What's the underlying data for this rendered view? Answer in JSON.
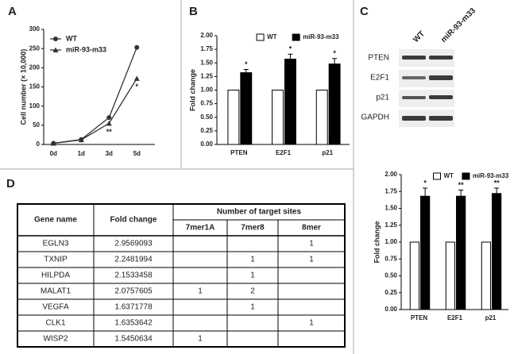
{
  "panels": {
    "a": "A",
    "b": "B",
    "c": "C",
    "d": "D"
  },
  "chart_data": [
    {
      "type": "line",
      "ylabel": "Cell number (× 10,000)",
      "categories": [
        "0d",
        "1d",
        "3d",
        "5d"
      ],
      "ylim": [
        0,
        300
      ],
      "yticks": [
        0,
        50,
        100,
        150,
        200,
        250,
        300
      ],
      "series": [
        {
          "name": "WT",
          "color": "#333333",
          "marker": "circle",
          "values": [
            3,
            13,
            70,
            253
          ]
        },
        {
          "name": "miR-93-m33",
          "color": "#333333",
          "marker": "triangle",
          "values": [
            3,
            12,
            55,
            172
          ],
          "annotations": [
            null,
            null,
            "**",
            "*"
          ]
        }
      ]
    },
    {
      "type": "bar",
      "ylabel": "Fold change",
      "categories": [
        "PTEN",
        "E2F1",
        "p21"
      ],
      "ylim": [
        0,
        2
      ],
      "yticks": [
        {
          "value": 0,
          "label": "0.00"
        },
        {
          "value": 0.25,
          "label": "0.25"
        },
        {
          "value": 0.5,
          "label": "0.50"
        },
        {
          "value": 0.75,
          "label": "0.75"
        },
        {
          "value": 1,
          "label": "1.00"
        },
        {
          "value": 1.25,
          "label": "1.25"
        },
        {
          "value": 1.5,
          "label": "1.50"
        },
        {
          "value": 1.75,
          "label": "1.75"
        },
        {
          "value": 2,
          "label": "2.00"
        }
      ],
      "series": [
        {
          "name": "WT",
          "color": "#ffffff",
          "values": [
            1,
            1,
            1
          ]
        },
        {
          "name": "miR-93-m33",
          "color": "#000000",
          "values": [
            1.32,
            1.57,
            1.48
          ],
          "errors": [
            0.06,
            0.09,
            0.1
          ],
          "annotations": [
            "*",
            "*",
            "*"
          ]
        }
      ]
    },
    {
      "type": "bar",
      "ylabel": "Fold change",
      "categories": [
        "PTEN",
        "E2F1",
        "p21"
      ],
      "ylim": [
        0,
        2
      ],
      "yticks": [
        {
          "value": 0,
          "label": "0.00"
        },
        {
          "value": 0.25,
          "label": "0.25"
        },
        {
          "value": 0.5,
          "label": "0.50"
        },
        {
          "value": 0.75,
          "label": "0.75"
        },
        {
          "value": 1,
          "label": "1.00"
        },
        {
          "value": 1.25,
          "label": "1.25"
        },
        {
          "value": 1.5,
          "label": "1.50"
        },
        {
          "value": 1.75,
          "label": "1.75"
        },
        {
          "value": 2,
          "label": "2.00"
        }
      ],
      "series": [
        {
          "name": "WT",
          "color": "#ffffff",
          "values": [
            1,
            1,
            1
          ]
        },
        {
          "name": "miR-93-m33",
          "color": "#000000",
          "values": [
            1.68,
            1.68,
            1.72
          ],
          "errors": [
            0.12,
            0.09,
            0.08
          ],
          "annotations": [
            "*",
            "**",
            "**"
          ]
        }
      ]
    }
  ],
  "western_blot": {
    "columns": [
      "WT",
      "miR-93-m33"
    ],
    "rows": [
      "PTEN",
      "E2F1",
      "p21",
      "GAPDH"
    ]
  },
  "table": {
    "header": [
      "Gene name",
      "Fold change",
      "Number of  target sites"
    ],
    "subheader": [
      "7mer1A",
      "7mer8",
      "8mer"
    ],
    "rows": [
      [
        "EGLN3",
        2.9569093,
        null,
        null,
        1
      ],
      [
        "TXNIP",
        2.2481994,
        null,
        1,
        1
      ],
      [
        "HILPDA",
        2.1533458,
        null,
        1,
        null
      ],
      [
        "MALAT1",
        2.0757605,
        1,
        2,
        null
      ],
      [
        "VEGFA",
        1.6371778,
        null,
        1,
        null
      ],
      [
        "CLK1",
        1.6353642,
        null,
        null,
        1
      ],
      [
        "WISP2",
        1.5450634,
        1,
        null,
        null
      ]
    ]
  }
}
